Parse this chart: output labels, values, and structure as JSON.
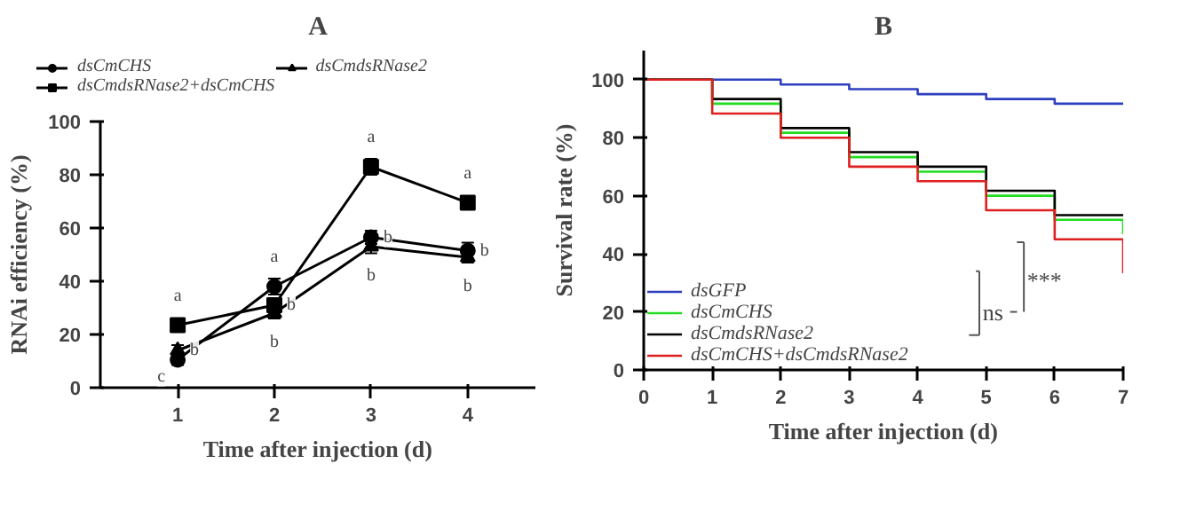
{
  "chart_data": [
    {
      "type": "line",
      "title": "A",
      "xlabel": "Time after injection (d)",
      "ylabel": "RNAi efficiency (%)",
      "x": [
        1,
        2,
        3,
        4
      ],
      "xlim": [
        0.2,
        4.7
      ],
      "xticks": [
        1,
        2,
        3,
        4
      ],
      "ylim": [
        0,
        100
      ],
      "yticks": [
        0,
        20,
        40,
        60,
        80,
        100
      ],
      "grid": false,
      "legend": "top",
      "series": [
        {
          "name": "dsCmCHS",
          "color": "#000000",
          "marker": "circle",
          "values": [
            10.5,
            38,
            56.5,
            51.5
          ],
          "errors": [
            2,
            3,
            2.5,
            3
          ]
        },
        {
          "name": "dsCmdsRNase2",
          "color": "#000000",
          "marker": "triangle",
          "values": [
            14,
            28,
            53,
            49
          ],
          "errors": [
            2,
            2,
            2.5,
            2
          ]
        },
        {
          "name": "dsCmdsRNase2+dsCmCHS",
          "color": "#000000",
          "marker": "square",
          "values": [
            23.5,
            31,
            83,
            69.5
          ],
          "errors": [
            1.5,
            2,
            3,
            2
          ]
        }
      ],
      "annotations": [
        {
          "text": "a",
          "x": 1,
          "y": 23.5
        },
        {
          "text": "b",
          "x": 1,
          "y": 14
        },
        {
          "text": "c",
          "x": 1,
          "y": 10.5
        },
        {
          "text": "a",
          "x": 2,
          "y": 38
        },
        {
          "text": "b",
          "x": 2,
          "y": 31
        },
        {
          "text": "b",
          "x": 2,
          "y": 28
        },
        {
          "text": "a",
          "x": 3,
          "y": 83
        },
        {
          "text": "b",
          "x": 3,
          "y": 56.5
        },
        {
          "text": "b",
          "x": 3,
          "y": 53
        },
        {
          "text": "a",
          "x": 4,
          "y": 69.5
        },
        {
          "text": "b",
          "x": 4,
          "y": 51.5
        },
        {
          "text": "b",
          "x": 4,
          "y": 49
        }
      ]
    },
    {
      "type": "step",
      "title": "B",
      "xlabel": "Time after injection (d)",
      "ylabel": "Survival rate (%)",
      "x": [
        0,
        1,
        2,
        3,
        4,
        5,
        6,
        7
      ],
      "xlim": [
        0,
        7
      ],
      "xticks": [
        0,
        1,
        2,
        3,
        4,
        5,
        6,
        7
      ],
      "ylim": [
        0,
        110
      ],
      "yticks": [
        0,
        20,
        40,
        60,
        80,
        100
      ],
      "grid": false,
      "legend": "bottom left",
      "series": [
        {
          "name": "dsGFP",
          "color": "#2e3fbf",
          "values": [
            100,
            100,
            98.3,
            96.7,
            95,
            93.3,
            91.7,
            91.7
          ]
        },
        {
          "name": "dsCmCHS",
          "color": "#22dd22",
          "values": [
            100,
            91.7,
            81.7,
            73.3,
            68.3,
            60,
            51.7,
            46.7
          ]
        },
        {
          "name": "dsCmdsRNase2",
          "color": "#000000",
          "values": [
            100,
            93.3,
            83.3,
            75,
            70,
            61.7,
            53.3,
            53.3
          ]
        },
        {
          "name": "dsCmCHS+dsCmdsRNase2",
          "color": "#e02020",
          "values": [
            100,
            88.3,
            80,
            70,
            65,
            55,
            45,
            33.3
          ]
        }
      ],
      "annotations": [
        "ns",
        "***"
      ]
    }
  ]
}
